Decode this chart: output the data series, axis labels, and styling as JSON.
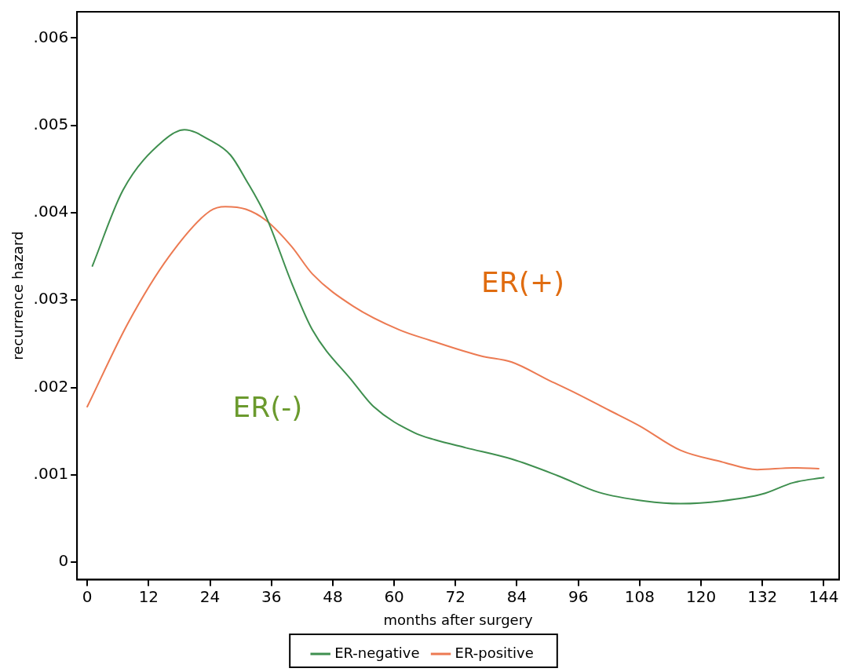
{
  "chart_data": {
    "type": "line",
    "xlabel": "months after surgery",
    "ylabel": "recurrence hazard",
    "xlim": [
      -2,
      147
    ],
    "xticks": [
      0,
      12,
      24,
      36,
      48,
      60,
      72,
      84,
      96,
      108,
      120,
      132,
      144
    ],
    "ylim": [
      -0.0002,
      0.0063
    ],
    "yticks": [
      0,
      {
        "value": 0.001,
        "label": ".001"
      },
      {
        "value": 0.002,
        "label": ".002"
      },
      {
        "value": 0.003,
        "label": ".003"
      },
      {
        "value": 0.004,
        "label": ".004"
      },
      {
        "value": 0.005,
        "label": ".005"
      },
      {
        "value": 0.006,
        "label": ".006"
      }
    ],
    "grid": false,
    "legend": "bottom",
    "marker": "none",
    "line_style": "solid",
    "series": [
      {
        "name": "ER-negative",
        "color": "#3f8f4f",
        "x": [
          1,
          7,
          15,
          19,
          24,
          28,
          31,
          35,
          40,
          44,
          52,
          56,
          64,
          68,
          74,
          83,
          92,
          100,
          109,
          116,
          124,
          132,
          138,
          144
        ],
        "values": [
          0.00339,
          0.00426,
          0.00483,
          0.00495,
          0.00483,
          0.00466,
          0.00438,
          0.00395,
          0.00319,
          0.00266,
          0.00206,
          0.00178,
          0.00148,
          0.0014,
          0.00131,
          0.00118,
          0.00099,
          0.0008,
          0.0007,
          0.00067,
          0.0007,
          0.00078,
          0.00091,
          0.00097
        ]
      },
      {
        "name": "ER-positive",
        "color": "#ec7a52",
        "x": [
          0,
          8,
          16,
          24,
          27,
          31,
          35,
          40,
          44,
          52,
          61,
          67,
          77,
          83,
          90,
          95,
          102,
          108,
          116,
          124,
          131,
          138,
          143
        ],
        "values": [
          0.00178,
          0.00274,
          0.0035,
          0.00402,
          0.00407,
          0.00404,
          0.00391,
          0.00361,
          0.0033,
          0.00293,
          0.00266,
          0.00254,
          0.00236,
          0.00229,
          0.00209,
          0.00195,
          0.00174,
          0.00156,
          0.00128,
          0.00115,
          0.00106,
          0.00108,
          0.00107
        ]
      }
    ],
    "annotations": [
      "ER(+)",
      "ER(-)"
    ]
  }
}
